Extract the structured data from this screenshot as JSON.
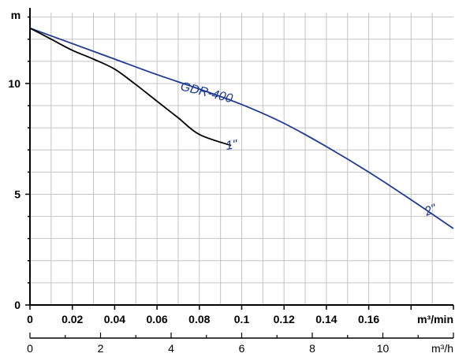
{
  "chart_data": {
    "type": "line",
    "title": "",
    "y_unit": "m",
    "x_unit_primary": "m³/min",
    "x_unit_secondary": "m³/h",
    "ylim": [
      0,
      13.2
    ],
    "xlim_primary": [
      0,
      0.2
    ],
    "xlim_secondary": [
      0,
      12
    ],
    "y_ticks": [
      "0",
      "5",
      "10"
    ],
    "y_tick_values": [
      0,
      5,
      10
    ],
    "x_ticks_primary": [
      "0",
      "0.02",
      "0.04",
      "0.06",
      "0.08",
      "0.1",
      "0.12",
      "0.14",
      "0.16"
    ],
    "x_tick_values_primary": [
      0,
      0.02,
      0.04,
      0.06,
      0.08,
      0.1,
      0.12,
      0.14,
      0.16
    ],
    "x_ticks_secondary": [
      "0",
      "2",
      "4",
      "6",
      "8",
      "10"
    ],
    "x_tick_values_secondary": [
      0,
      2,
      4,
      6,
      8,
      10
    ],
    "grid": true,
    "series": [
      {
        "name": "GDR-400",
        "color": "#1f3a93",
        "x": [
          0,
          0.02,
          0.04,
          0.06,
          0.08,
          0.1,
          0.12,
          0.14,
          0.16,
          0.18,
          0.2
        ],
        "y": [
          12.5,
          11.8,
          11.1,
          10.4,
          9.75,
          9.05,
          8.2,
          7.15,
          6.0,
          4.75,
          3.45
        ]
      },
      {
        "name": "1\"",
        "color": "#000000",
        "x": [
          0,
          0.01,
          0.02,
          0.03,
          0.04,
          0.05,
          0.06,
          0.07,
          0.08,
          0.095
        ],
        "y": [
          12.5,
          12.0,
          11.5,
          11.1,
          10.65,
          9.95,
          9.2,
          8.45,
          7.7,
          7.2
        ]
      }
    ],
    "annotations": [
      {
        "text": "GDR-400",
        "series": "GDR-400"
      },
      {
        "text": "1\"",
        "series": "1\""
      },
      {
        "text": "2\"",
        "series": "GDR-400"
      }
    ]
  }
}
